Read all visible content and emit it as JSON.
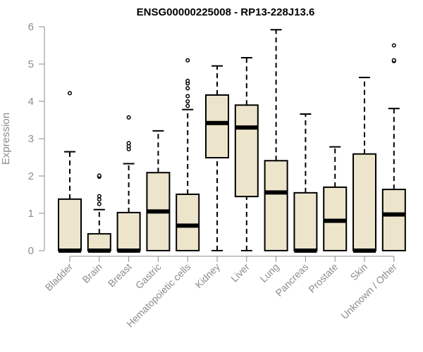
{
  "chart_data": {
    "type": "boxplot",
    "title": "ENSG00000225008 - RP13-228J13.6",
    "xlabel": "",
    "ylabel": "Expression",
    "ylim": [
      0,
      6
    ],
    "yticks": [
      0,
      1,
      2,
      3,
      4,
      5,
      6
    ],
    "grid": false,
    "box_fill": "#ede5cb",
    "axis_color": "#8c8c8c",
    "categories": [
      "Bladder",
      "Brain",
      "Breast",
      "Gastric",
      "Hematopoietic cells",
      "Kidney",
      "Liver",
      "Lung",
      "Pancreas",
      "Prostate",
      "Skin",
      "Unknown / Other"
    ],
    "boxes": [
      {
        "name": "Bladder",
        "min": 0,
        "q1": 0,
        "median": 0,
        "q3": 1.38,
        "max": 2.65,
        "outliers": [
          4.22
        ]
      },
      {
        "name": "Brain",
        "min": 0,
        "q1": 0,
        "median": 0,
        "q3": 0.45,
        "max": 1.1,
        "outliers": [
          1.25,
          1.37,
          1.46,
          1.98,
          2.01
        ]
      },
      {
        "name": "Breast",
        "min": 0,
        "q1": 0,
        "median": 0,
        "q3": 1.02,
        "max": 2.33,
        "outliers": [
          2.72,
          2.8,
          2.88,
          3.57
        ]
      },
      {
        "name": "Gastric",
        "min": 0,
        "q1": 0,
        "median": 1.05,
        "q3": 2.09,
        "max": 3.21,
        "outliers": []
      },
      {
        "name": "Hematopoietic cells",
        "min": 0,
        "q1": 0,
        "median": 0.67,
        "q3": 1.51,
        "max": 3.78,
        "outliers": [
          3.88,
          4.0,
          4.14,
          4.35,
          4.48,
          4.55,
          5.1
        ]
      },
      {
        "name": "Kidney",
        "min": 0,
        "q1": 2.49,
        "median": 3.42,
        "q3": 4.17,
        "max": 4.95,
        "outliers": []
      },
      {
        "name": "Liver",
        "min": 0,
        "q1": 1.45,
        "median": 3.3,
        "q3": 3.9,
        "max": 5.17,
        "outliers": []
      },
      {
        "name": "Lung",
        "min": 0,
        "q1": 0,
        "median": 1.56,
        "q3": 2.41,
        "max": 5.92,
        "outliers": []
      },
      {
        "name": "Pancreas",
        "min": 0,
        "q1": 0,
        "median": 0,
        "q3": 1.55,
        "max": 3.66,
        "outliers": []
      },
      {
        "name": "Prostate",
        "min": 0,
        "q1": 0,
        "median": 0.8,
        "q3": 1.7,
        "max": 2.78,
        "outliers": []
      },
      {
        "name": "Skin",
        "min": 0,
        "q1": 0,
        "median": 0,
        "q3": 2.59,
        "max": 4.64,
        "outliers": []
      },
      {
        "name": "Unknown / Other",
        "min": 0,
        "q1": 0,
        "median": 0.97,
        "q3": 1.64,
        "max": 3.81,
        "outliers": [
          5.08,
          5.1,
          5.5
        ]
      }
    ]
  }
}
